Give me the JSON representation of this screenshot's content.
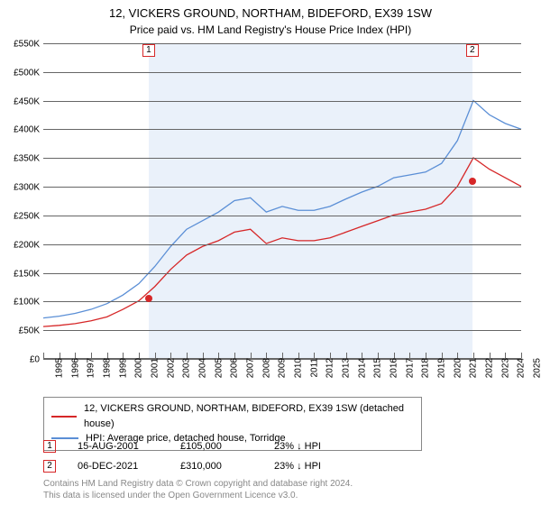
{
  "title_line1": "12, VICKERS GROUND, NORTHAM, BIDEFORD, EX39 1SW",
  "title_line2": "Price paid vs. HM Land Registry's House Price Index (HPI)",
  "chart": {
    "type": "line",
    "background_color": "#ffffff",
    "shaded_band_color": "#eaf1fa",
    "grid_color": "#666666",
    "x_start_year": 1995,
    "x_end_year": 2025,
    "x_tick_step": 1,
    "ylim": [
      0,
      550000
    ],
    "ytick_step": 50000,
    "ytick_prefix": "£",
    "ytick_suffix": "K",
    "label_fontsize": 10,
    "series": [
      {
        "name": "property",
        "color": "#d62728",
        "width": 1.3,
        "legend": "12, VICKERS GROUND, NORTHAM, BIDEFORD, EX39 1SW (detached house)",
        "points": [
          [
            1995,
            55000
          ],
          [
            1996,
            57000
          ],
          [
            1997,
            60000
          ],
          [
            1998,
            65000
          ],
          [
            1999,
            72000
          ],
          [
            2000,
            85000
          ],
          [
            2001,
            100000
          ],
          [
            2002,
            125000
          ],
          [
            2003,
            155000
          ],
          [
            2004,
            180000
          ],
          [
            2005,
            195000
          ],
          [
            2006,
            205000
          ],
          [
            2007,
            220000
          ],
          [
            2008,
            225000
          ],
          [
            2009,
            200000
          ],
          [
            2010,
            210000
          ],
          [
            2011,
            205000
          ],
          [
            2012,
            205000
          ],
          [
            2013,
            210000
          ],
          [
            2014,
            220000
          ],
          [
            2015,
            230000
          ],
          [
            2016,
            240000
          ],
          [
            2017,
            250000
          ],
          [
            2018,
            255000
          ],
          [
            2019,
            260000
          ],
          [
            2020,
            270000
          ],
          [
            2021,
            300000
          ],
          [
            2022,
            350000
          ],
          [
            2023,
            330000
          ],
          [
            2024,
            315000
          ],
          [
            2025,
            300000
          ]
        ]
      },
      {
        "name": "hpi",
        "color": "#5b8fd6",
        "width": 1.3,
        "legend": "HPI: Average price, detached house, Torridge",
        "points": [
          [
            1995,
            70000
          ],
          [
            1996,
            73000
          ],
          [
            1997,
            78000
          ],
          [
            1998,
            85000
          ],
          [
            1999,
            95000
          ],
          [
            2000,
            110000
          ],
          [
            2001,
            130000
          ],
          [
            2002,
            160000
          ],
          [
            2003,
            195000
          ],
          [
            2004,
            225000
          ],
          [
            2005,
            240000
          ],
          [
            2006,
            255000
          ],
          [
            2007,
            275000
          ],
          [
            2008,
            280000
          ],
          [
            2009,
            255000
          ],
          [
            2010,
            265000
          ],
          [
            2011,
            258000
          ],
          [
            2012,
            258000
          ],
          [
            2013,
            265000
          ],
          [
            2014,
            278000
          ],
          [
            2015,
            290000
          ],
          [
            2016,
            300000
          ],
          [
            2017,
            315000
          ],
          [
            2018,
            320000
          ],
          [
            2019,
            325000
          ],
          [
            2020,
            340000
          ],
          [
            2021,
            380000
          ],
          [
            2022,
            450000
          ],
          [
            2023,
            425000
          ],
          [
            2024,
            410000
          ],
          [
            2025,
            400000
          ]
        ]
      }
    ],
    "sale_markers": [
      {
        "n": "1",
        "year_frac": 2001.62,
        "price": 105000,
        "box_top_offset": -2
      },
      {
        "n": "2",
        "year_frac": 2021.93,
        "price": 310000,
        "box_top_offset": -2
      }
    ],
    "marker_border_color": "#d62728",
    "marker_dot_color": "#d62728"
  },
  "legend_items": [
    {
      "color": "#d62728",
      "label_path": "chart.series.0.legend"
    },
    {
      "color": "#5b8fd6",
      "label_path": "chart.series.1.legend"
    }
  ],
  "sales_table": [
    {
      "n": "1",
      "date": "15-AUG-2001",
      "price": "£105,000",
      "delta": "23% ↓ HPI"
    },
    {
      "n": "2",
      "date": "06-DEC-2021",
      "price": "£310,000",
      "delta": "23% ↓ HPI"
    }
  ],
  "footer_line1": "Contains HM Land Registry data © Crown copyright and database right 2024.",
  "footer_line2": "This data is licensed under the Open Government Licence v3.0."
}
